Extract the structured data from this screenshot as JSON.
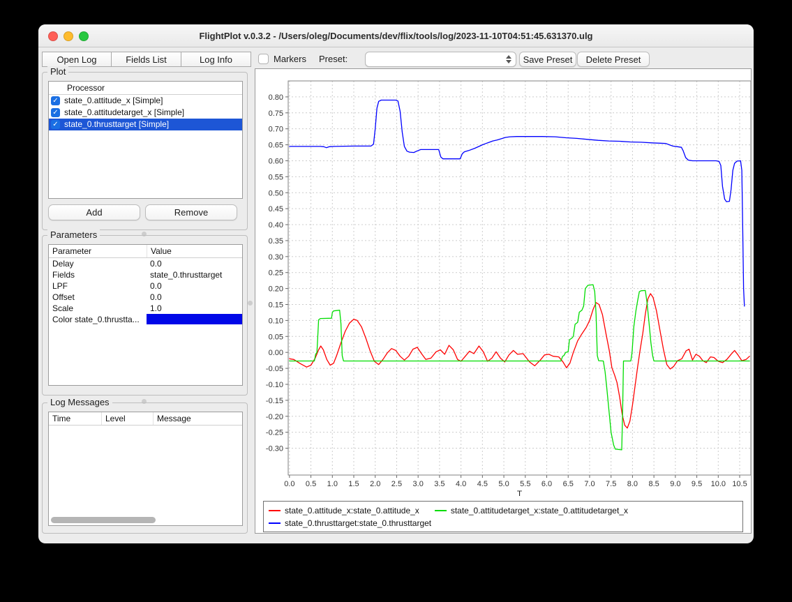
{
  "window": {
    "title": "FlightPlot v.0.3.2 - /Users/oleg/Documents/dev/flix/tools/log/2023-11-10T04:51:45.631370.ulg"
  },
  "toolbar": {
    "open_log": "Open Log",
    "fields_list": "Fields List",
    "log_info": "Log Info",
    "markers_label": "Markers",
    "markers_checked": false,
    "preset_label": "Preset:",
    "preset_value": "",
    "save_preset": "Save Preset",
    "delete_preset": "Delete Preset"
  },
  "plot_panel": {
    "title": "Plot",
    "header": "Processor",
    "items": [
      {
        "label": "state_0.attitude_x [Simple]",
        "checked": true,
        "selected": false
      },
      {
        "label": "state_0.attitudetarget_x [Simple]",
        "checked": true,
        "selected": false
      },
      {
        "label": "state_0.thrusttarget [Simple]",
        "checked": true,
        "selected": true
      }
    ],
    "add_button": "Add",
    "remove_button": "Remove"
  },
  "parameters_panel": {
    "title": "Parameters",
    "columns": [
      "Parameter",
      "Value"
    ],
    "rows": [
      {
        "parameter": "Delay",
        "value": "0.0"
      },
      {
        "parameter": "Fields",
        "value": "state_0.thrusttarget"
      },
      {
        "parameter": "LPF",
        "value": "0.0"
      },
      {
        "parameter": "Offset",
        "value": "0.0"
      },
      {
        "parameter": "Scale",
        "value": "1.0"
      },
      {
        "parameter": "Color state_0.thrustta...",
        "value": "",
        "swatch": "#0008e8"
      }
    ]
  },
  "log_messages_panel": {
    "title": "Log Messages",
    "columns": [
      "Time",
      "Level",
      "Message"
    ],
    "rows": []
  },
  "colors": {
    "selection_blue": "#1d56d6",
    "checkbox_blue": "#1a6fe3",
    "traffic_red": "#ff5f57",
    "traffic_yellow": "#febc2e",
    "traffic_green": "#28c840"
  },
  "chart_data": {
    "type": "line",
    "title": "",
    "xlabel": "T",
    "ylabel": "",
    "grid": true,
    "legend_position": "bottom",
    "xlim": [
      -0.03,
      10.76
    ],
    "ylim": [
      -0.384,
      0.85
    ],
    "x_ticks": [
      "0.0",
      "0.5",
      "1.0",
      "1.5",
      "2.0",
      "2.5",
      "3.0",
      "3.5",
      "4.0",
      "4.5",
      "5.0",
      "5.5",
      "6.0",
      "6.5",
      "7.0",
      "7.5",
      "8.0",
      "8.5",
      "9.0",
      "9.5",
      "10.0",
      "10.5"
    ],
    "y_ticks": [
      "0.80",
      "0.75",
      "0.70",
      "0.65",
      "0.60",
      "0.55",
      "0.50",
      "0.45",
      "0.40",
      "0.35",
      "0.30",
      "0.25",
      "0.20",
      "0.15",
      "0.10",
      "0.05",
      "0.00",
      "-0.05",
      "-0.10",
      "-0.15",
      "-0.20",
      "-0.25",
      "-0.30"
    ],
    "series": [
      {
        "name": "state_0.attitude_x:state_0.attitude_x",
        "color": "#ff0000",
        "points": [
          [
            0,
            -0.02
          ],
          [
            0.1,
            -0.022
          ],
          [
            0.25,
            -0.035
          ],
          [
            0.4,
            -0.046
          ],
          [
            0.5,
            -0.04
          ],
          [
            0.6,
            -0.018
          ],
          [
            0.68,
            0.008
          ],
          [
            0.73,
            0.02
          ],
          [
            0.79,
            0.008
          ],
          [
            0.87,
            -0.022
          ],
          [
            0.95,
            -0.04
          ],
          [
            1.03,
            -0.034
          ],
          [
            1.1,
            -0.01
          ],
          [
            1.2,
            0.03
          ],
          [
            1.3,
            0.066
          ],
          [
            1.4,
            0.092
          ],
          [
            1.5,
            0.104
          ],
          [
            1.58,
            0.1
          ],
          [
            1.68,
            0.08
          ],
          [
            1.78,
            0.045
          ],
          [
            1.88,
            0.005
          ],
          [
            1.98,
            -0.028
          ],
          [
            2.08,
            -0.038
          ],
          [
            2.18,
            -0.022
          ],
          [
            2.28,
            -0.002
          ],
          [
            2.38,
            0.012
          ],
          [
            2.48,
            0.006
          ],
          [
            2.58,
            -0.012
          ],
          [
            2.68,
            -0.024
          ],
          [
            2.78,
            -0.012
          ],
          [
            2.88,
            0.01
          ],
          [
            2.98,
            0.016
          ],
          [
            3.08,
            -0.004
          ],
          [
            3.18,
            -0.022
          ],
          [
            3.3,
            -0.018
          ],
          [
            3.42,
            0.002
          ],
          [
            3.52,
            0.008
          ],
          [
            3.62,
            -0.006
          ],
          [
            3.72,
            0.022
          ],
          [
            3.82,
            0.008
          ],
          [
            3.92,
            -0.022
          ],
          [
            4.0,
            -0.028
          ],
          [
            4.1,
            -0.012
          ],
          [
            4.2,
            0.004
          ],
          [
            4.3,
            -0.004
          ],
          [
            4.42,
            0.02
          ],
          [
            4.52,
            0.002
          ],
          [
            4.62,
            -0.028
          ],
          [
            4.72,
            -0.018
          ],
          [
            4.82,
            0.002
          ],
          [
            4.92,
            -0.018
          ],
          [
            5.02,
            -0.03
          ],
          [
            5.12,
            -0.008
          ],
          [
            5.22,
            0.006
          ],
          [
            5.32,
            -0.006
          ],
          [
            5.45,
            -0.004
          ],
          [
            5.6,
            -0.03
          ],
          [
            5.72,
            -0.042
          ],
          [
            5.85,
            -0.024
          ],
          [
            5.95,
            -0.008
          ],
          [
            6.05,
            -0.006
          ],
          [
            6.15,
            -0.012
          ],
          [
            6.28,
            -0.014
          ],
          [
            6.38,
            -0.03
          ],
          [
            6.46,
            -0.048
          ],
          [
            6.54,
            -0.034
          ],
          [
            6.62,
            0.0
          ],
          [
            6.72,
            0.036
          ],
          [
            6.82,
            0.058
          ],
          [
            6.92,
            0.078
          ],
          [
            7.0,
            0.1
          ],
          [
            7.08,
            0.134
          ],
          [
            7.15,
            0.156
          ],
          [
            7.22,
            0.15
          ],
          [
            7.3,
            0.118
          ],
          [
            7.38,
            0.06
          ],
          [
            7.46,
            0.005
          ],
          [
            7.52,
            -0.048
          ],
          [
            7.58,
            -0.07
          ],
          [
            7.64,
            -0.095
          ],
          [
            7.7,
            -0.14
          ],
          [
            7.76,
            -0.195
          ],
          [
            7.82,
            -0.228
          ],
          [
            7.88,
            -0.237
          ],
          [
            7.94,
            -0.215
          ],
          [
            8.0,
            -0.165
          ],
          [
            8.06,
            -0.105
          ],
          [
            8.12,
            -0.045
          ],
          [
            8.18,
            0.01
          ],
          [
            8.24,
            0.06
          ],
          [
            8.3,
            0.12
          ],
          [
            8.36,
            0.168
          ],
          [
            8.42,
            0.184
          ],
          [
            8.48,
            0.172
          ],
          [
            8.56,
            0.13
          ],
          [
            8.64,
            0.07
          ],
          [
            8.72,
            0.01
          ],
          [
            8.8,
            -0.038
          ],
          [
            8.88,
            -0.052
          ],
          [
            8.96,
            -0.044
          ],
          [
            9.05,
            -0.026
          ],
          [
            9.15,
            -0.02
          ],
          [
            9.25,
            0.005
          ],
          [
            9.32,
            0.01
          ],
          [
            9.4,
            -0.024
          ],
          [
            9.48,
            -0.006
          ],
          [
            9.56,
            -0.012
          ],
          [
            9.64,
            -0.026
          ],
          [
            9.72,
            -0.032
          ],
          [
            9.82,
            -0.014
          ],
          [
            9.9,
            -0.016
          ],
          [
            10.0,
            -0.028
          ],
          [
            10.1,
            -0.032
          ],
          [
            10.2,
            -0.022
          ],
          [
            10.3,
            -0.006
          ],
          [
            10.38,
            0.006
          ],
          [
            10.46,
            -0.008
          ],
          [
            10.55,
            -0.026
          ],
          [
            10.65,
            -0.022
          ],
          [
            10.73,
            -0.012
          ]
        ]
      },
      {
        "name": "state_0.attitudetarget_x:state_0.attitudetarget_x",
        "color": "#00dd00",
        "points": [
          [
            0,
            -0.027
          ],
          [
            0.58,
            -0.027
          ],
          [
            0.61,
            -0.006
          ],
          [
            0.64,
            0.0
          ],
          [
            0.66,
            0.05
          ],
          [
            0.68,
            0.102
          ],
          [
            0.72,
            0.106
          ],
          [
            0.98,
            0.107
          ],
          [
            1.0,
            0.125
          ],
          [
            1.03,
            0.13
          ],
          [
            1.17,
            0.132
          ],
          [
            1.2,
            0.09
          ],
          [
            1.23,
            -0.01
          ],
          [
            1.26,
            -0.027
          ],
          [
            2.5,
            -0.027
          ],
          [
            4.0,
            -0.027
          ],
          [
            6.33,
            -0.027
          ],
          [
            6.37,
            -0.012
          ],
          [
            6.4,
            -0.01
          ],
          [
            6.44,
            0.0
          ],
          [
            6.5,
            0.002
          ],
          [
            6.53,
            0.04
          ],
          [
            6.58,
            0.044
          ],
          [
            6.62,
            0.05
          ],
          [
            6.66,
            0.088
          ],
          [
            6.72,
            0.094
          ],
          [
            6.76,
            0.126
          ],
          [
            6.82,
            0.132
          ],
          [
            6.86,
            0.145
          ],
          [
            6.9,
            0.2
          ],
          [
            6.96,
            0.21
          ],
          [
            7.08,
            0.212
          ],
          [
            7.12,
            0.19
          ],
          [
            7.15,
            0.12
          ],
          [
            7.18,
            -0.01
          ],
          [
            7.21,
            -0.026
          ],
          [
            7.32,
            -0.027
          ],
          [
            7.36,
            -0.06
          ],
          [
            7.4,
            -0.11
          ],
          [
            7.45,
            -0.18
          ],
          [
            7.5,
            -0.25
          ],
          [
            7.56,
            -0.29
          ],
          [
            7.6,
            -0.303
          ],
          [
            7.75,
            -0.305
          ],
          [
            7.77,
            -0.18
          ],
          [
            7.79,
            -0.027
          ],
          [
            7.96,
            -0.027
          ],
          [
            7.99,
            0.0
          ],
          [
            8.03,
            0.08
          ],
          [
            8.08,
            0.13
          ],
          [
            8.12,
            0.162
          ],
          [
            8.16,
            0.19
          ],
          [
            8.2,
            0.193
          ],
          [
            8.3,
            0.194
          ],
          [
            8.34,
            0.155
          ],
          [
            8.38,
            0.1
          ],
          [
            8.43,
            0.03
          ],
          [
            8.47,
            -0.01
          ],
          [
            8.5,
            -0.027
          ],
          [
            9.3,
            -0.027
          ],
          [
            10.73,
            -0.027
          ]
        ]
      },
      {
        "name": "state_0.thrusttarget:state_0.thrusttarget",
        "color": "#0000ff",
        "points": [
          [
            0,
            0.645
          ],
          [
            0.4,
            0.645
          ],
          [
            0.72,
            0.645
          ],
          [
            0.8,
            0.644
          ],
          [
            0.86,
            0.641
          ],
          [
            0.93,
            0.644
          ],
          [
            1.05,
            0.645
          ],
          [
            1.5,
            0.646
          ],
          [
            1.9,
            0.646
          ],
          [
            1.96,
            0.652
          ],
          [
            2.0,
            0.7
          ],
          [
            2.04,
            0.765
          ],
          [
            2.08,
            0.786
          ],
          [
            2.14,
            0.79
          ],
          [
            2.48,
            0.79
          ],
          [
            2.53,
            0.787
          ],
          [
            2.58,
            0.755
          ],
          [
            2.63,
            0.69
          ],
          [
            2.68,
            0.645
          ],
          [
            2.74,
            0.63
          ],
          [
            2.8,
            0.627
          ],
          [
            2.9,
            0.626
          ],
          [
            2.98,
            0.631
          ],
          [
            3.06,
            0.635
          ],
          [
            3.48,
            0.635
          ],
          [
            3.53,
            0.612
          ],
          [
            3.58,
            0.606
          ],
          [
            3.98,
            0.606
          ],
          [
            4.03,
            0.622
          ],
          [
            4.08,
            0.628
          ],
          [
            4.18,
            0.632
          ],
          [
            4.32,
            0.639
          ],
          [
            4.42,
            0.645
          ],
          [
            4.5,
            0.65
          ],
          [
            4.56,
            0.653
          ],
          [
            4.64,
            0.657
          ],
          [
            4.74,
            0.662
          ],
          [
            4.84,
            0.665
          ],
          [
            4.94,
            0.669
          ],
          [
            5.04,
            0.673
          ],
          [
            5.14,
            0.675
          ],
          [
            5.3,
            0.676
          ],
          [
            5.9,
            0.676
          ],
          [
            6.2,
            0.675
          ],
          [
            6.45,
            0.672
          ],
          [
            6.7,
            0.67
          ],
          [
            6.95,
            0.667
          ],
          [
            7.2,
            0.664
          ],
          [
            7.45,
            0.662
          ],
          [
            7.7,
            0.661
          ],
          [
            7.95,
            0.659
          ],
          [
            8.2,
            0.658
          ],
          [
            8.45,
            0.656
          ],
          [
            8.65,
            0.655
          ],
          [
            8.78,
            0.654
          ],
          [
            8.86,
            0.65
          ],
          [
            8.94,
            0.646
          ],
          [
            9.05,
            0.644
          ],
          [
            9.14,
            0.642
          ],
          [
            9.18,
            0.632
          ],
          [
            9.24,
            0.61
          ],
          [
            9.3,
            0.602
          ],
          [
            9.4,
            0.6
          ],
          [
            9.95,
            0.6
          ],
          [
            10.02,
            0.598
          ],
          [
            10.06,
            0.585
          ],
          [
            10.1,
            0.52
          ],
          [
            10.15,
            0.48
          ],
          [
            10.19,
            0.472
          ],
          [
            10.26,
            0.473
          ],
          [
            10.3,
            0.51
          ],
          [
            10.34,
            0.57
          ],
          [
            10.38,
            0.592
          ],
          [
            10.44,
            0.599
          ],
          [
            10.52,
            0.6
          ],
          [
            10.55,
            0.57
          ],
          [
            10.57,
            0.4
          ],
          [
            10.59,
            0.2
          ],
          [
            10.61,
            0.145
          ]
        ]
      }
    ]
  }
}
